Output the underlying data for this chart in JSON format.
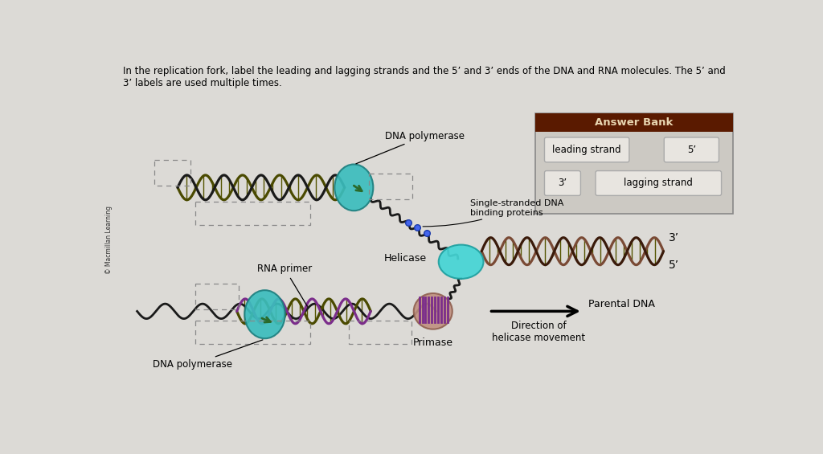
{
  "bg_color": "#dcdad6",
  "title_line1": "In the replication fork, label the leading and lagging strands and the 5’ and 3’ ends of the DNA and RNA molecules. The 5’ and",
  "title_line2": "3’ labels are used multiple times.",
  "copyright_text": "© Macmillan Learning",
  "answer_bank_title": "Answer Bank",
  "answer_bank_title_bg": "#5a1a00",
  "answer_bank_title_color": "#e8d5b0",
  "answer_bank_bg": "#ccc9c3",
  "btn_bg": "#e8e5e0",
  "btn_border": "#aaaaaa",
  "btn_items": [
    {
      "text": "leading strand",
      "col": 0,
      "row": 0
    },
    {
      "text": "5’",
      "col": 1,
      "row": 0
    },
    {
      "text": "3’",
      "col": 0,
      "row": 1
    },
    {
      "text": "lagging strand",
      "col": 1,
      "row": 1
    }
  ],
  "label_dna_poly_top": "DNA polymerase",
  "label_single_strand": "Single-stranded DNA\nbinding proteins",
  "label_helicase": "Helicase",
  "label_rna_primer": "RNA primer",
  "label_primase": "Primase",
  "label_parental": "Parental DNA",
  "label_direction": "Direction of\nhelicase movement",
  "label_dna_poly_bot": "DNA polymerase",
  "label_3prime": "3’",
  "label_5prime": "5’",
  "color_strand1": "#4a4a00",
  "color_strand2": "#1a1a1a",
  "color_strand_purple": "#7B2D8B",
  "color_rung": "#555500",
  "color_teal": "#3bbdbd",
  "color_teal_dark": "#1e8080",
  "color_primase": "#c09080",
  "color_blue_dots": "#3355bb",
  "color_arrow_green": "#2a6a2a"
}
